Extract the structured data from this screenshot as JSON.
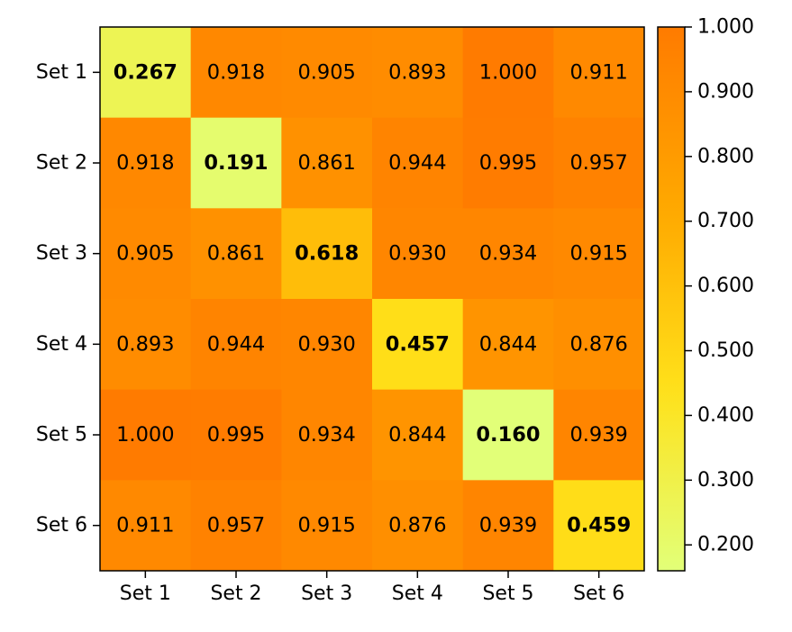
{
  "chart_data": {
    "type": "heatmap",
    "title": "",
    "xlabel": "",
    "ylabel": "",
    "x_categories": [
      "Set 1",
      "Set 2",
      "Set 3",
      "Set 4",
      "Set 5",
      "Set 6"
    ],
    "y_categories": [
      "Set 1",
      "Set 2",
      "Set 3",
      "Set 4",
      "Set 5",
      "Set 6"
    ],
    "values": [
      [
        0.267,
        0.918,
        0.905,
        0.893,
        1.0,
        0.911
      ],
      [
        0.918,
        0.191,
        0.861,
        0.944,
        0.995,
        0.957
      ],
      [
        0.905,
        0.861,
        0.618,
        0.93,
        0.934,
        0.915
      ],
      [
        0.893,
        0.944,
        0.93,
        0.457,
        0.844,
        0.876
      ],
      [
        1.0,
        0.995,
        0.934,
        0.844,
        0.16,
        0.939
      ],
      [
        0.911,
        0.957,
        0.915,
        0.876,
        0.939,
        0.459
      ]
    ],
    "value_format": "0.000",
    "diagonal_bold": true,
    "colorbar": {
      "min": 0.16,
      "max": 1.0,
      "ticks": [
        "0.200",
        "0.300",
        "0.400",
        "0.500",
        "0.600",
        "0.700",
        "0.800",
        "0.900",
        "1.000"
      ],
      "colors": [
        "#e2ff78",
        "#ffe11a",
        "#ffa800",
        "#ff7b00"
      ]
    },
    "grid": false
  }
}
